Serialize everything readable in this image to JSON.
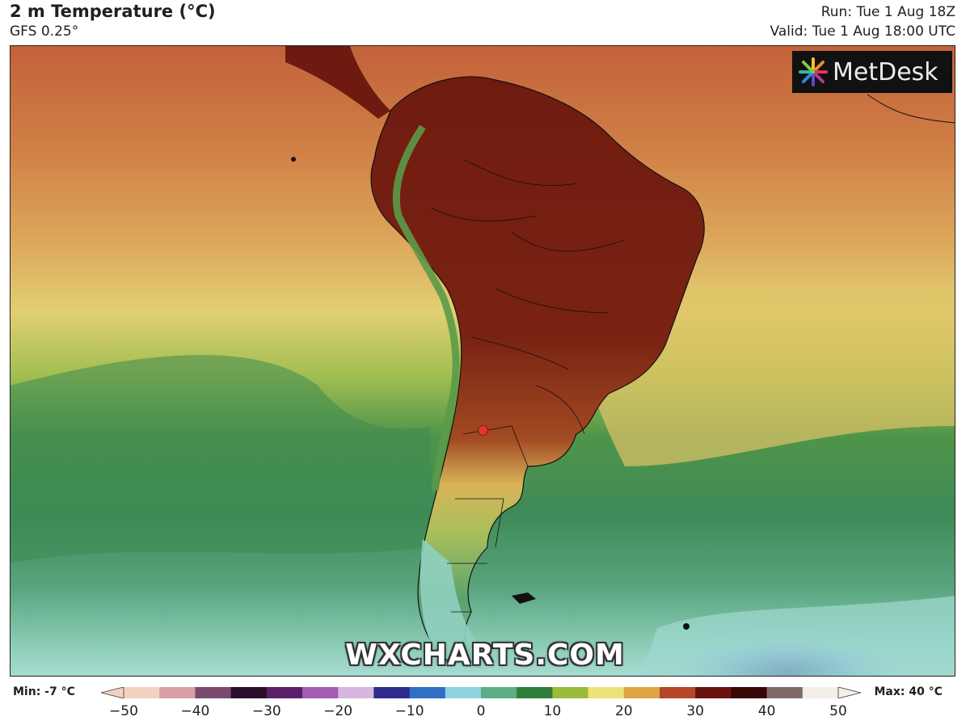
{
  "header": {
    "title": "2 m Temperature (°C)",
    "subtitle": "GFS 0.25°",
    "run": "Run: Tue 1 Aug 18Z",
    "valid": "Valid: Tue 1 Aug 18:00 UTC"
  },
  "logo": {
    "text": "MetDesk",
    "icon": "metdesk-burst-icon"
  },
  "watermark": "WXCHARTS.COM",
  "marker": {
    "color": "#e8332c",
    "icon": "location-dot-icon"
  },
  "colorbar": {
    "min_label": "Min: -7 °C",
    "max_label": "Max: 40 °C",
    "ticks": [
      "−50",
      "−40",
      "−30",
      "−20",
      "−10",
      "0",
      "10",
      "20",
      "30",
      "40",
      "50"
    ],
    "range": [
      -50,
      50
    ],
    "colors": [
      "#f2d3bf",
      "#d9a0a6",
      "#7a4a6d",
      "#2a0f2a",
      "#5b1f68",
      "#a35bb3",
      "#d7b6e0",
      "#2c2c8c",
      "#2f6fc4",
      "#8fd1e0",
      "#5cae86",
      "#2f7d3a",
      "#9bbb3a",
      "#ece27a",
      "#e0a342",
      "#b4472a",
      "#6a130c",
      "#3a0505",
      "#7e6a6a",
      "#f2eee8"
    ]
  },
  "palette": {
    "cold_water": "#8fd0c8",
    "cool_green": "#3f8c55",
    "mid_green": "#6aa44a",
    "warm_yellow": "#e6d774",
    "warm_orange": "#d99a4a",
    "hot_red": "#b3452a",
    "land_hot": "#6e1a10"
  }
}
